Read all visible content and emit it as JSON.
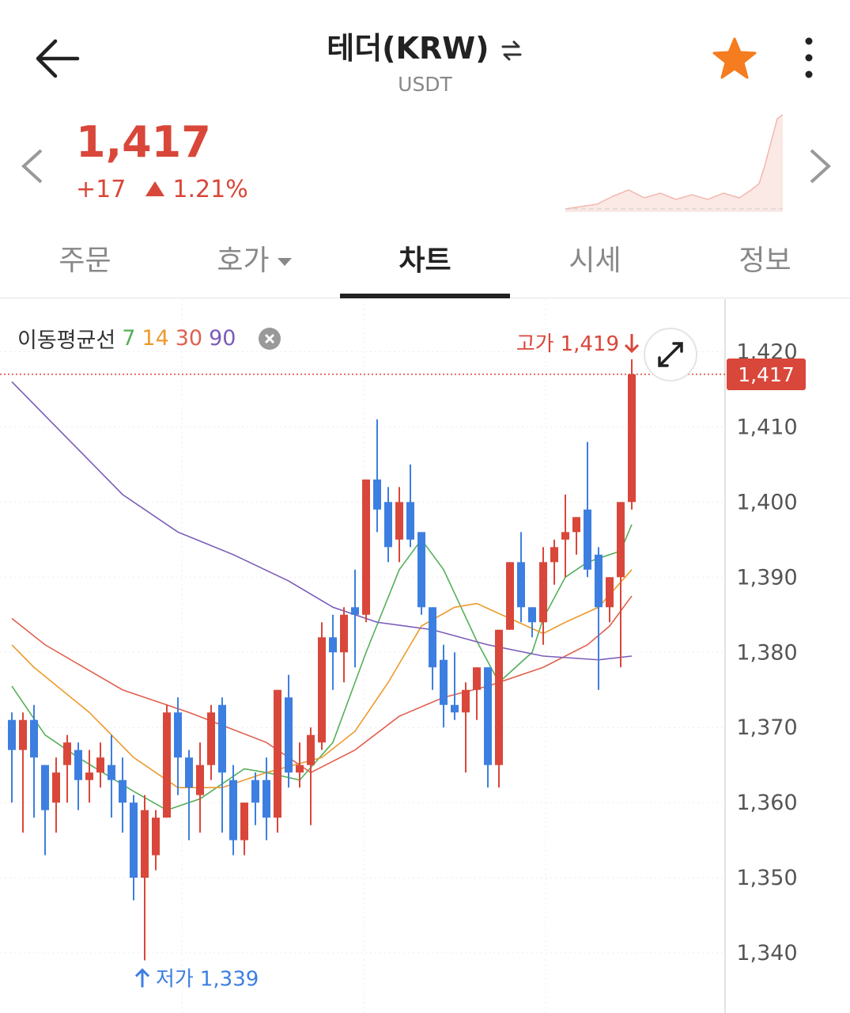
{
  "header": {
    "title": "테더(KRW)",
    "subtitle": "USDT"
  },
  "price": {
    "value": "1,417",
    "change": "+17",
    "rate": "1.21%"
  },
  "tabs": [
    "주문",
    "호가",
    "차트",
    "시세",
    "정보"
  ],
  "chart_data": {
    "type": "candlestick",
    "legend_title": "이동평균선",
    "up_color": "#d9473a",
    "down_color": "#3d7fe0",
    "open": [
      1371,
      1367,
      1371,
      1365,
      1360,
      1365,
      1367,
      1363,
      1364,
      1365,
      1363,
      1360,
      1350,
      1353,
      1358,
      1372,
      1366,
      1361,
      1365,
      1373,
      1363,
      1355,
      1363,
      1363,
      1358,
      1374,
      1364,
      1365,
      1368,
      1382,
      1380,
      1386,
      1385,
      1403,
      1400,
      1395,
      1400,
      1396,
      1386,
      1379,
      1373,
      1372,
      1375,
      1378,
      1365,
      1383,
      1392,
      1386,
      1384,
      1392,
      1395,
      1396,
      1399,
      1393,
      1386,
      1390,
      1400
    ],
    "high": [
      1372,
      1372,
      1373,
      1365,
      1366,
      1369,
      1368,
      1367,
      1368,
      1369,
      1366,
      1361,
      1361,
      1359,
      1373,
      1374,
      1367,
      1368,
      1373,
      1374,
      1365,
      1360,
      1364,
      1366,
      1375,
      1377,
      1368,
      1370,
      1384,
      1385,
      1386,
      1391,
      1403,
      1411,
      1402,
      1402,
      1405,
      1396,
      1386,
      1381,
      1380,
      1376,
      1378,
      1378,
      1383,
      1392,
      1396,
      1386,
      1394,
      1395,
      1401,
      1398,
      1408,
      1394,
      1390,
      1400,
      1419
    ],
    "low": [
      1360,
      1356,
      1358,
      1353,
      1356,
      1360,
      1359,
      1360,
      1362,
      1358,
      1356,
      1347,
      1339,
      1351,
      1358,
      1361,
      1355,
      1356,
      1363,
      1356,
      1353,
      1353,
      1357,
      1355,
      1356,
      1362,
      1362,
      1357,
      1367,
      1375,
      1376,
      1378,
      1384,
      1396,
      1392,
      1392,
      1394,
      1385,
      1375,
      1370,
      1371,
      1364,
      1371,
      1362,
      1362,
      1383,
      1384,
      1382,
      1381,
      1389,
      1390,
      1393,
      1390,
      1375,
      1384,
      1378,
      1399
    ],
    "close": [
      1367,
      1371,
      1366,
      1359,
      1364,
      1368,
      1363,
      1364,
      1366,
      1363,
      1360,
      1350,
      1359,
      1358,
      1372,
      1366,
      1362,
      1365,
      1372,
      1364,
      1355,
      1360,
      1360,
      1358,
      1375,
      1364,
      1365,
      1369,
      1382,
      1380,
      1385,
      1385,
      1403,
      1399,
      1394,
      1400,
      1395,
      1386,
      1378,
      1373,
      1372,
      1375,
      1378,
      1365,
      1383,
      1392,
      1386,
      1384,
      1392,
      1394,
      1396,
      1398,
      1391,
      1386,
      1390,
      1400,
      1417
    ],
    "series": [
      {
        "name": "7",
        "color": "#55b05a",
        "x": [
          0,
          3,
          6,
          11,
          14,
          17,
          21,
          23,
          26,
          29,
          32,
          35,
          37,
          39,
          42,
          44,
          47,
          48,
          50,
          52,
          55,
          56
        ],
        "values": [
          1375.5,
          1369,
          1366,
          1361.5,
          1359,
          1360.5,
          1364.5,
          1364,
          1363,
          1368,
          1380,
          1391,
          1395,
          1391,
          1381.5,
          1376,
          1380,
          1384.5,
          1390,
          1392,
          1393.5,
          1397
        ]
      },
      {
        "name": "14",
        "color": "#ee9a2c",
        "x": [
          0,
          2,
          7,
          11,
          15,
          19,
          23,
          28,
          31,
          34,
          37,
          40,
          42,
          45,
          48,
          50,
          53,
          56
        ],
        "values": [
          1381,
          1378,
          1372,
          1366,
          1362,
          1362,
          1364,
          1366,
          1369.5,
          1376,
          1383.5,
          1386,
          1386.5,
          1384.5,
          1382.5,
          1384,
          1386,
          1391
        ]
      },
      {
        "name": "30",
        "color": "#e0604f",
        "x": [
          0,
          3,
          10,
          16,
          23,
          27,
          31,
          35,
          39,
          43,
          48,
          52,
          54,
          56
        ],
        "values": [
          1384.5,
          1381,
          1375,
          1372,
          1368,
          1364,
          1367,
          1371.5,
          1374,
          1375.5,
          1378,
          1381,
          1383.5,
          1387.5
        ]
      },
      {
        "name": "90",
        "color": "#7b5cb8",
        "x": [
          0,
          5,
          10,
          15,
          20,
          25,
          29,
          33,
          38,
          43,
          48,
          53,
          56
        ],
        "values": [
          1416,
          1408.5,
          1401,
          1396,
          1393,
          1389.5,
          1386,
          1384,
          1383,
          1381,
          1379.5,
          1379,
          1379.5
        ]
      }
    ],
    "ylim": [
      1332,
      1427
    ],
    "yticks": [
      {
        "value": 1340,
        "label": "1,340"
      },
      {
        "value": 1350,
        "label": "1,350"
      },
      {
        "value": 1360,
        "label": "1,360"
      },
      {
        "value": 1370,
        "label": "1,370"
      },
      {
        "value": 1380,
        "label": "1,380"
      },
      {
        "value": 1390,
        "label": "1,390"
      },
      {
        "value": 1400,
        "label": "1,400"
      },
      {
        "value": 1410,
        "label": "1,410"
      },
      {
        "value": 1420,
        "label": "1,420"
      }
    ],
    "last": {
      "value": 1417,
      "label": "1,417"
    },
    "annotations": [
      {
        "text": "고가",
        "value": 1419,
        "label": "1,419"
      },
      {
        "text": "저가",
        "value": 1339,
        "label": "1,339"
      }
    ]
  }
}
